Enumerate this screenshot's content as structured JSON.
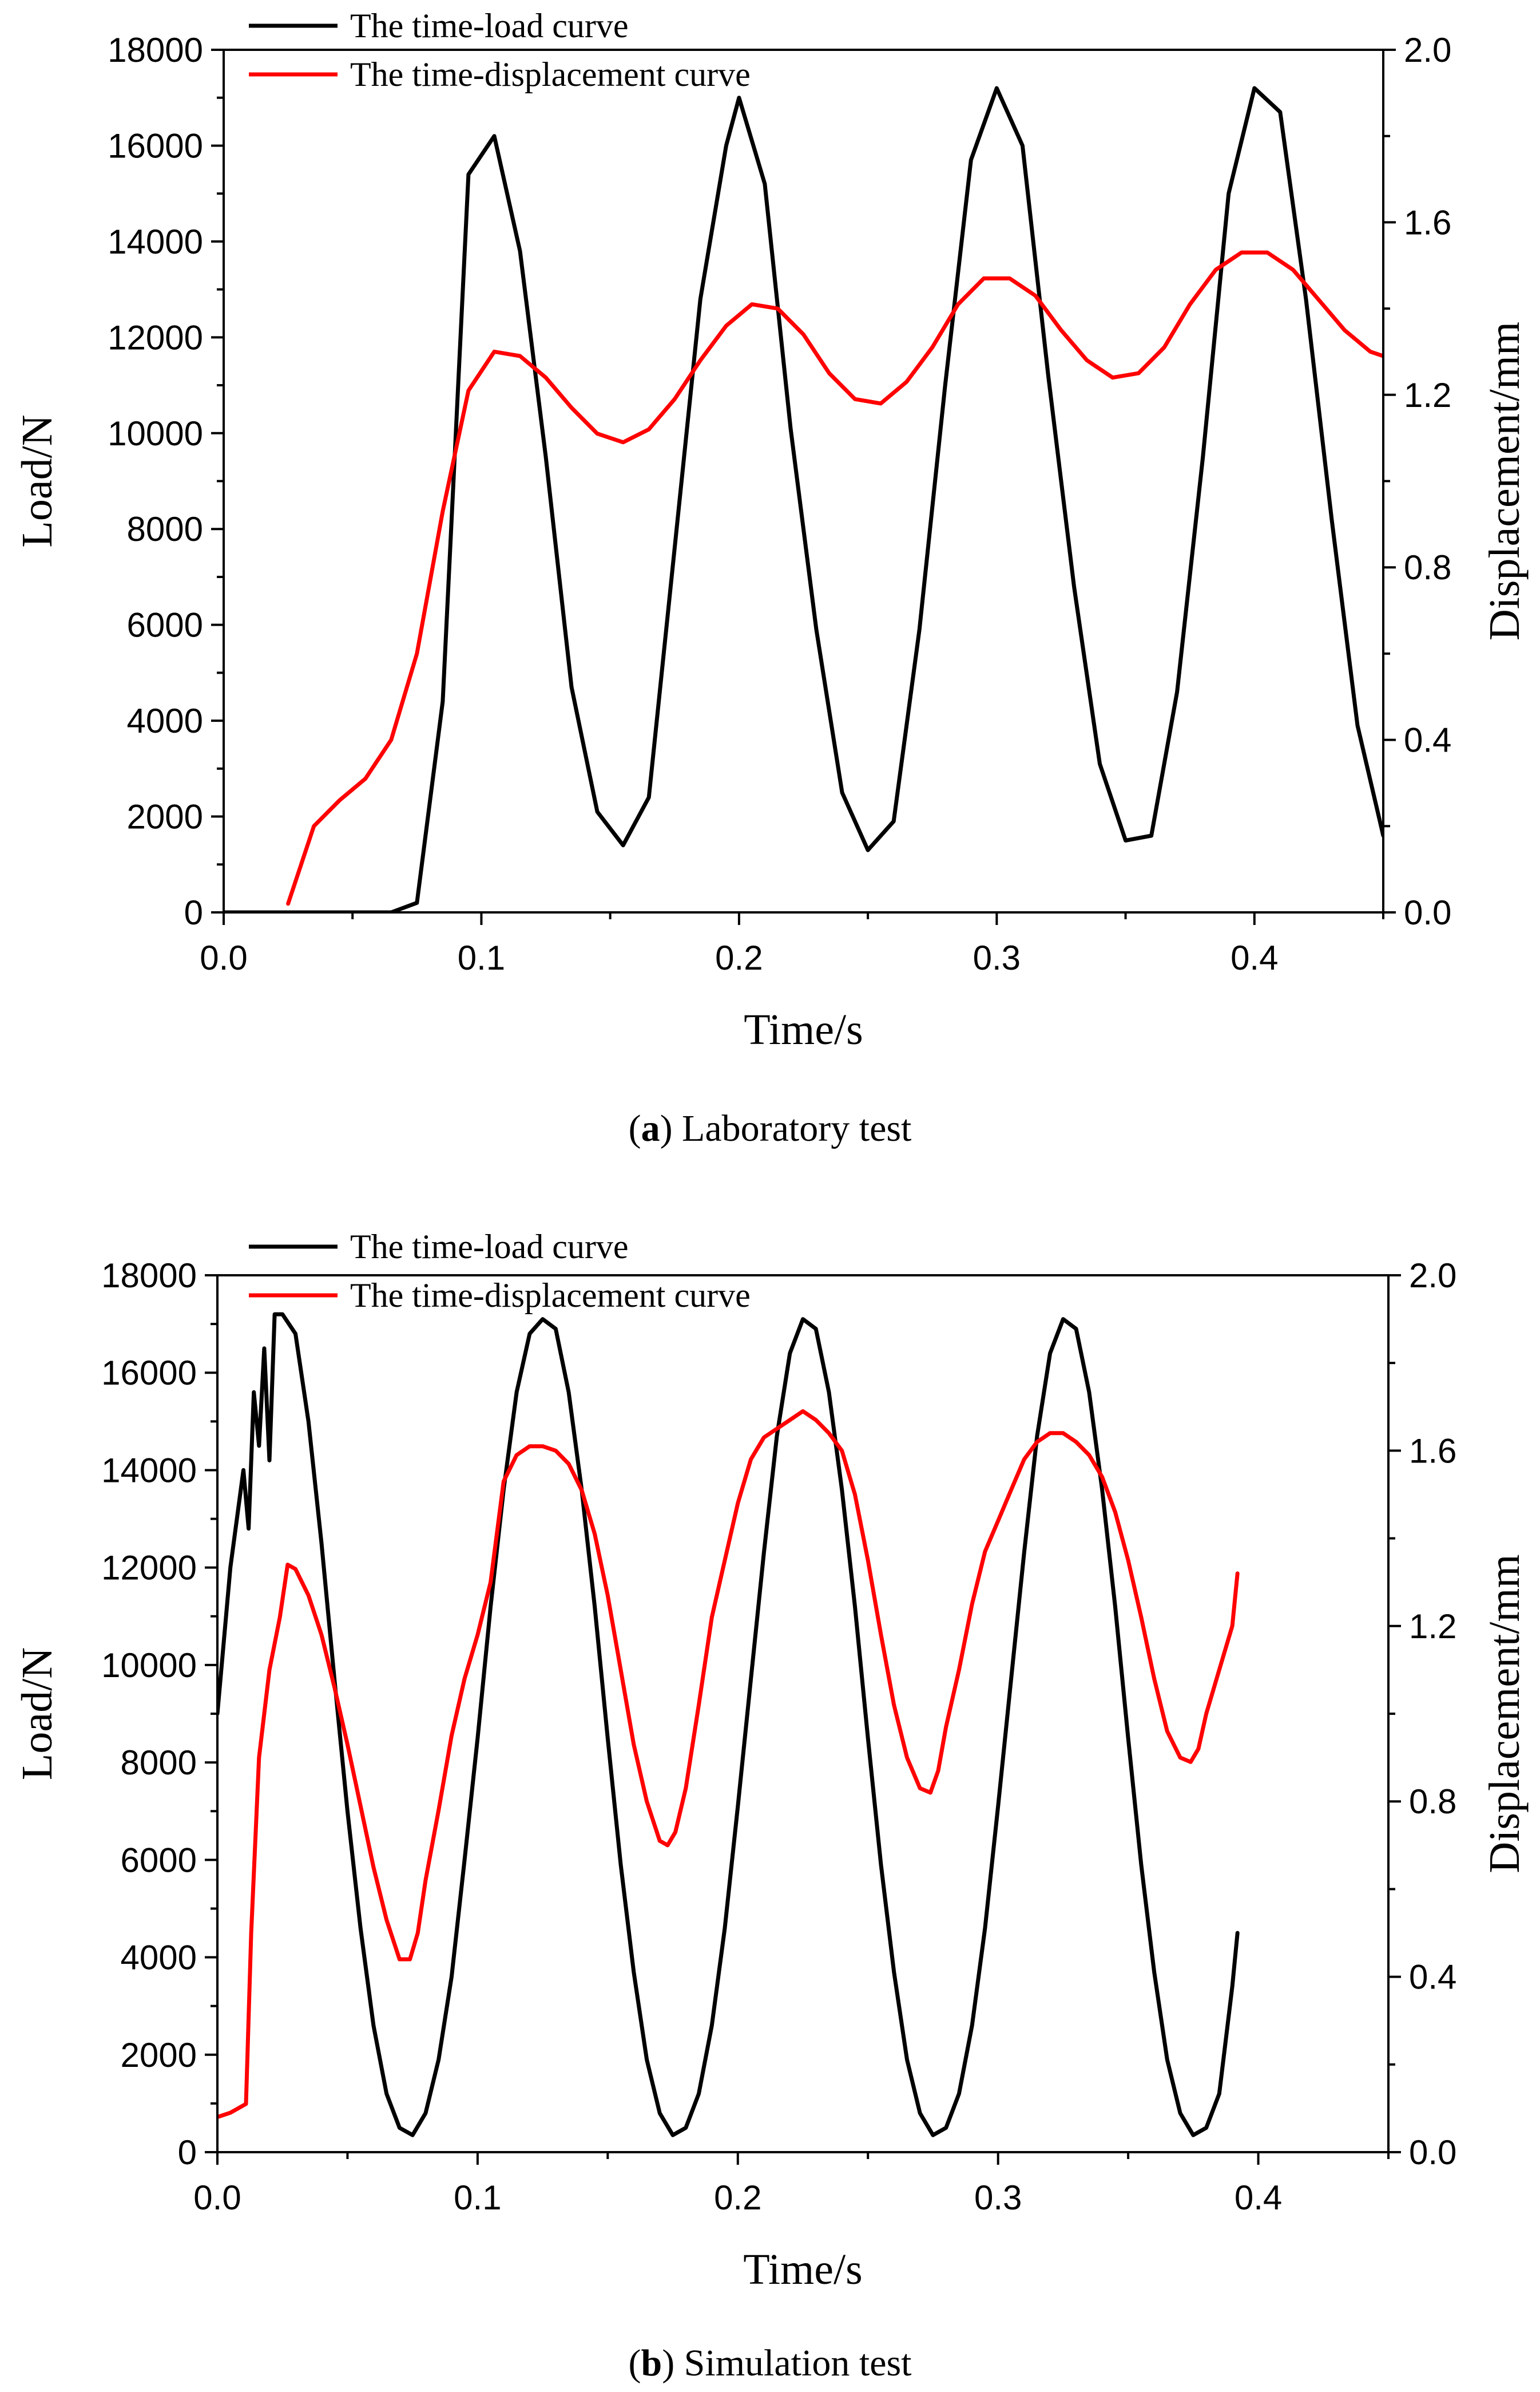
{
  "chart_data": [
    {
      "type": "line",
      "caption": {
        "letter": "a",
        "text": " Laboratory test"
      },
      "xlabel": "Time/s",
      "ylabel": "Load/N",
      "y2label": "Displacement/mm",
      "xlim": [
        0,
        0.45
      ],
      "ylim": [
        0,
        18000
      ],
      "y2lim": [
        0,
        2.0
      ],
      "xticks": [
        0.0,
        0.1,
        0.2,
        0.3,
        0.4
      ],
      "xtick_labels": [
        "0.0",
        "0.1",
        "0.2",
        "0.3",
        "0.4"
      ],
      "yticks": [
        0,
        2000,
        4000,
        6000,
        8000,
        10000,
        12000,
        14000,
        16000,
        18000
      ],
      "ytick_labels": [
        "0",
        "2000",
        "4000",
        "6000",
        "8000",
        "10000",
        "12000",
        "14000",
        "16000",
        "18000"
      ],
      "y2ticks": [
        0.0,
        0.4,
        0.8,
        1.2,
        1.6,
        2.0
      ],
      "y2tick_labels": [
        "0.0",
        "0.4",
        "0.8",
        "1.2",
        "1.6",
        "2.0"
      ],
      "legend_position": "top-left",
      "series": [
        {
          "name": "The time-load curve",
          "axis": "left",
          "color": "#000000",
          "x": [
            0.0,
            0.03,
            0.06,
            0.065,
            0.075,
            0.085,
            0.095,
            0.105,
            0.115,
            0.125,
            0.135,
            0.145,
            0.155,
            0.165,
            0.175,
            0.185,
            0.195,
            0.2,
            0.21,
            0.22,
            0.23,
            0.24,
            0.25,
            0.26,
            0.27,
            0.28,
            0.29,
            0.3,
            0.31,
            0.32,
            0.33,
            0.34,
            0.35,
            0.36,
            0.37,
            0.38,
            0.39,
            0.4,
            0.41,
            0.42,
            0.43,
            0.44,
            0.45
          ],
          "values": [
            0,
            0,
            0,
            0,
            200,
            4400,
            15400,
            16200,
            13800,
            9500,
            4700,
            2100,
            1400,
            2400,
            7600,
            12800,
            16000,
            17000,
            15200,
            10100,
            5900,
            2500,
            1300,
            1900,
            5900,
            11000,
            15700,
            17200,
            16000,
            11200,
            6800,
            3100,
            1500,
            1600,
            4600,
            9500,
            15000,
            17200,
            16700,
            12800,
            8200,
            3900,
            1600
          ]
        },
        {
          "name": "The time-displacement curve",
          "axis": "right",
          "color": "#ff0000",
          "x": [
            0.025,
            0.035,
            0.045,
            0.055,
            0.065,
            0.075,
            0.085,
            0.095,
            0.105,
            0.115,
            0.125,
            0.135,
            0.145,
            0.155,
            0.165,
            0.175,
            0.185,
            0.195,
            0.205,
            0.215,
            0.225,
            0.235,
            0.245,
            0.255,
            0.265,
            0.275,
            0.285,
            0.295,
            0.305,
            0.315,
            0.325,
            0.335,
            0.345,
            0.355,
            0.365,
            0.375,
            0.385,
            0.395,
            0.405,
            0.415,
            0.425,
            0.435,
            0.445,
            0.45
          ],
          "values": [
            0.02,
            0.2,
            0.26,
            0.31,
            0.4,
            0.6,
            0.93,
            1.21,
            1.3,
            1.29,
            1.24,
            1.17,
            1.11,
            1.09,
            1.12,
            1.19,
            1.28,
            1.36,
            1.41,
            1.4,
            1.34,
            1.25,
            1.19,
            1.18,
            1.23,
            1.31,
            1.41,
            1.47,
            1.47,
            1.43,
            1.35,
            1.28,
            1.24,
            1.25,
            1.31,
            1.41,
            1.49,
            1.53,
            1.53,
            1.49,
            1.42,
            1.35,
            1.3,
            1.29
          ]
        }
      ]
    },
    {
      "type": "line",
      "caption": {
        "letter": "b",
        "text": " Simulation test"
      },
      "xlabel": "Time/s",
      "ylabel": "Load/N",
      "y2label": "Displacement/mm",
      "xlim": [
        0,
        0.45
      ],
      "ylim": [
        0,
        18000
      ],
      "y2lim": [
        0,
        2.0
      ],
      "xticks": [
        0.0,
        0.1,
        0.2,
        0.3,
        0.4
      ],
      "xtick_labels": [
        "0.0",
        "0.1",
        "0.2",
        "0.3",
        "0.4"
      ],
      "yticks": [
        0,
        2000,
        4000,
        6000,
        8000,
        10000,
        12000,
        14000,
        16000,
        18000
      ],
      "ytick_labels": [
        "0",
        "2000",
        "4000",
        "6000",
        "8000",
        "10000",
        "12000",
        "14000",
        "16000",
        "18000"
      ],
      "y2ticks": [
        0.0,
        0.4,
        0.8,
        1.2,
        1.6,
        2.0
      ],
      "y2tick_labels": [
        "0.0",
        "0.4",
        "0.8",
        "1.2",
        "1.6",
        "2.0"
      ],
      "legend_position": "top-left",
      "series": [
        {
          "name": "The time-load curve",
          "axis": "left",
          "color": "#000000",
          "x": [
            0.0,
            0.005,
            0.01,
            0.012,
            0.014,
            0.016,
            0.018,
            0.02,
            0.022,
            0.025,
            0.03,
            0.035,
            0.04,
            0.045,
            0.05,
            0.055,
            0.06,
            0.065,
            0.07,
            0.075,
            0.08,
            0.085,
            0.09,
            0.095,
            0.1,
            0.105,
            0.11,
            0.115,
            0.12,
            0.125,
            0.13,
            0.135,
            0.14,
            0.145,
            0.15,
            0.155,
            0.16,
            0.165,
            0.17,
            0.175,
            0.18,
            0.185,
            0.19,
            0.195,
            0.2,
            0.205,
            0.21,
            0.215,
            0.22,
            0.225,
            0.23,
            0.235,
            0.24,
            0.245,
            0.25,
            0.255,
            0.26,
            0.265,
            0.27,
            0.275,
            0.28,
            0.285,
            0.29,
            0.295,
            0.3,
            0.305,
            0.31,
            0.315,
            0.32,
            0.325,
            0.33,
            0.335,
            0.34,
            0.345,
            0.35,
            0.355,
            0.36,
            0.365,
            0.37,
            0.375,
            0.38,
            0.385,
            0.39,
            0.392
          ],
          "values": [
            9000,
            12000,
            14000,
            12800,
            15600,
            14500,
            16500,
            14200,
            17200,
            17200,
            16800,
            15000,
            12500,
            9700,
            7000,
            4600,
            2600,
            1200,
            500,
            350,
            800,
            1900,
            3600,
            6000,
            8500,
            11200,
            13600,
            15600,
            16800,
            17100,
            16900,
            15600,
            13600,
            11200,
            8500,
            5900,
            3700,
            1900,
            800,
            350,
            500,
            1200,
            2600,
            4600,
            7100,
            9700,
            12300,
            14700,
            16400,
            17100,
            16900,
            15600,
            13600,
            11200,
            8500,
            5900,
            3700,
            1900,
            800,
            350,
            500,
            1200,
            2600,
            4600,
            7100,
            9700,
            12300,
            14700,
            16400,
            17100,
            16900,
            15600,
            13600,
            11200,
            8500,
            5900,
            3700,
            1900,
            800,
            350,
            500,
            1200,
            3400,
            4500
          ]
        },
        {
          "name": "The time-displacement curve",
          "axis": "right",
          "color": "#ff0000",
          "x": [
            0.0,
            0.005,
            0.011,
            0.013,
            0.016,
            0.02,
            0.024,
            0.027,
            0.03,
            0.035,
            0.04,
            0.045,
            0.05,
            0.055,
            0.06,
            0.065,
            0.07,
            0.074,
            0.077,
            0.08,
            0.085,
            0.09,
            0.095,
            0.1,
            0.105,
            0.11,
            0.115,
            0.12,
            0.125,
            0.13,
            0.135,
            0.14,
            0.145,
            0.15,
            0.155,
            0.16,
            0.165,
            0.17,
            0.173,
            0.176,
            0.18,
            0.185,
            0.19,
            0.195,
            0.2,
            0.205,
            0.21,
            0.215,
            0.22,
            0.225,
            0.23,
            0.235,
            0.24,
            0.245,
            0.25,
            0.255,
            0.26,
            0.265,
            0.27,
            0.274,
            0.277,
            0.28,
            0.285,
            0.29,
            0.295,
            0.3,
            0.305,
            0.31,
            0.315,
            0.32,
            0.325,
            0.33,
            0.335,
            0.34,
            0.345,
            0.35,
            0.355,
            0.36,
            0.365,
            0.37,
            0.374,
            0.377,
            0.38,
            0.385,
            0.39,
            0.392
          ],
          "values": [
            0.08,
            0.09,
            0.11,
            0.5,
            0.9,
            1.1,
            1.22,
            1.34,
            1.33,
            1.27,
            1.18,
            1.06,
            0.93,
            0.79,
            0.65,
            0.53,
            0.44,
            0.44,
            0.5,
            0.62,
            0.78,
            0.95,
            1.08,
            1.18,
            1.3,
            1.53,
            1.59,
            1.61,
            1.61,
            1.6,
            1.57,
            1.51,
            1.41,
            1.27,
            1.1,
            0.93,
            0.8,
            0.71,
            0.7,
            0.73,
            0.83,
            1.02,
            1.22,
            1.35,
            1.48,
            1.58,
            1.63,
            1.65,
            1.67,
            1.69,
            1.67,
            1.64,
            1.6,
            1.5,
            1.35,
            1.18,
            1.02,
            0.9,
            0.83,
            0.82,
            0.87,
            0.97,
            1.1,
            1.25,
            1.37,
            1.44,
            1.51,
            1.58,
            1.62,
            1.64,
            1.64,
            1.62,
            1.59,
            1.54,
            1.46,
            1.35,
            1.22,
            1.08,
            0.96,
            0.9,
            0.89,
            0.92,
            1.0,
            1.1,
            1.2,
            1.32
          ]
        }
      ]
    }
  ]
}
